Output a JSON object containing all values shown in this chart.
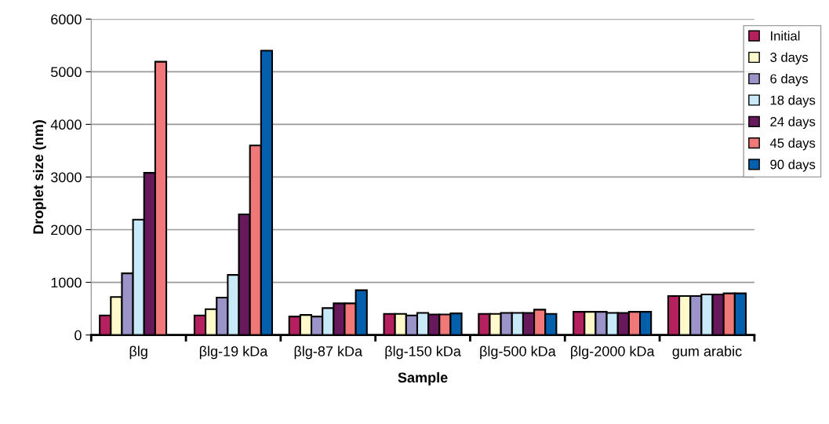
{
  "chart_data": {
    "type": "bar",
    "xlabel": "Sample",
    "ylabel": "Droplet size (nm)",
    "categories": [
      "βlg",
      "βlg-19 kDa",
      "βlg-87 kDa",
      "βlg-150 kDa",
      "βlg-500 kDa",
      "βlg-2000 kDa",
      "gum arabic"
    ],
    "series": [
      {
        "name": "Initial",
        "color": "#b5205f",
        "values": [
          370,
          370,
          350,
          400,
          400,
          440,
          740
        ]
      },
      {
        "name": "3 days",
        "color": "#fffacc",
        "values": [
          720,
          490,
          380,
          400,
          400,
          440,
          740
        ]
      },
      {
        "name": "6 days",
        "color": "#9b94c8",
        "values": [
          1170,
          710,
          350,
          370,
          420,
          440,
          740
        ]
      },
      {
        "name": "18 days",
        "color": "#c8eaf8",
        "values": [
          2190,
          1140,
          510,
          420,
          420,
          420,
          770
        ]
      },
      {
        "name": "24 days",
        "color": "#661a5c",
        "values": [
          3080,
          2290,
          600,
          390,
          420,
          420,
          770
        ]
      },
      {
        "name": "45 days",
        "color": "#f07878",
        "values": [
          5190,
          3600,
          600,
          390,
          480,
          440,
          790
        ]
      },
      {
        "name": "90 days",
        "color": "#045fac",
        "values": [
          null,
          5400,
          850,
          410,
          400,
          440,
          790
        ]
      }
    ],
    "ylim": [
      0,
      6000
    ],
    "yticks": [
      0,
      1000,
      2000,
      3000,
      4000,
      5000,
      6000
    ],
    "grid": "y",
    "legend": "top right"
  }
}
